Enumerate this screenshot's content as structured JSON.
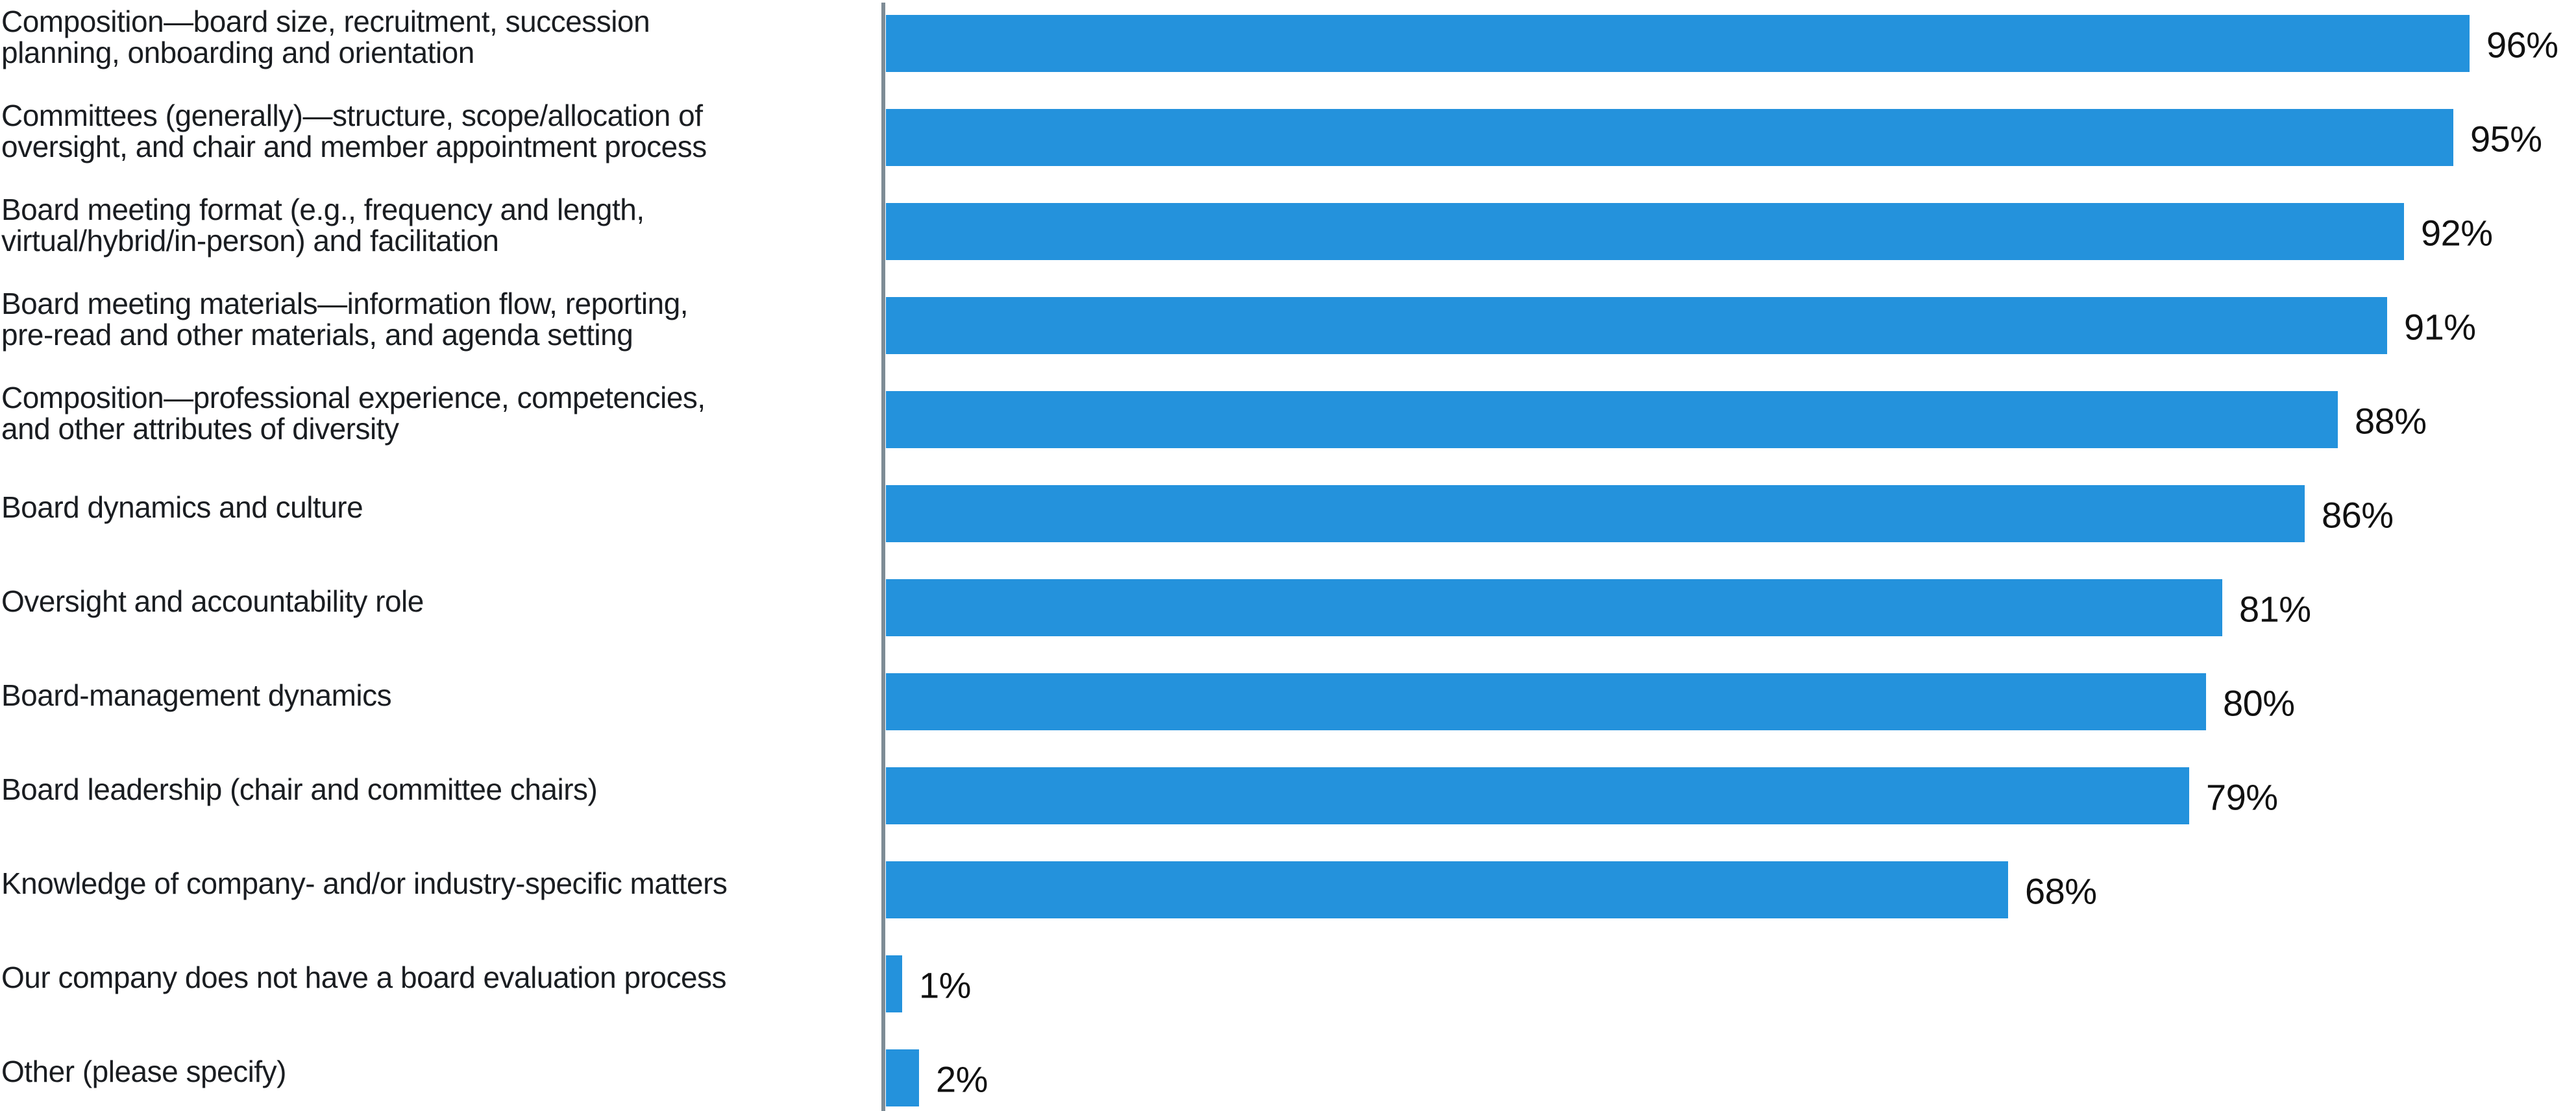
{
  "chart_data": {
    "type": "bar",
    "orientation": "horizontal",
    "title": "",
    "xlabel": "",
    "ylabel": "",
    "xlim": [
      0,
      100
    ],
    "grid": false,
    "legend": false,
    "value_label_position": "outside-end",
    "bar_color": "#2492DC",
    "axis_line_color": "#7E8C96",
    "label_color": "#1A1D21",
    "value_color": "#111111",
    "categories": [
      "Composition—board size, recruitment, succession planning, onboarding and orientation",
      "Committees (generally)—structure, scope/allocation of oversight, and chair and member appointment process",
      "Board meeting format (e.g., frequency and length, virtual/hybrid/in-person) and facilitation",
      "Board meeting materials—information flow, reporting, pre-read and other materials, and agenda setting",
      "Composition—professional experience, competencies, and other attributes of diversity",
      "Board dynamics and culture",
      "Oversight and accountability role",
      "Board-management dynamics",
      "Board leadership (chair and committee chairs)",
      "Knowledge of company- and/or industry-specific matters",
      "Our company does not have a board evaluation process",
      "Other (please specify)"
    ],
    "category_lines": [
      [
        "Composition—board size, recruitment, succession",
        "planning, onboarding and orientation"
      ],
      [
        "Committees (generally)—structure, scope/allocation of",
        "oversight, and chair and member appointment process"
      ],
      [
        "Board meeting format (e.g., frequency and length,",
        "virtual/hybrid/in-person) and facilitation"
      ],
      [
        "Board meeting materials—information flow, reporting,",
        "pre-read and other materials, and agenda setting"
      ],
      [
        "Composition—professional experience, competencies,",
        "and other attributes of diversity"
      ],
      [
        "Board dynamics and culture"
      ],
      [
        "Oversight and accountability role"
      ],
      [
        "Board-management dynamics"
      ],
      [
        "Board leadership (chair and committee chairs)"
      ],
      [
        "Knowledge of company- and/or industry-specific matters"
      ],
      [
        "Our company does not have a board evaluation process"
      ],
      [
        "Other (please specify)"
      ]
    ],
    "values": [
      96,
      95,
      92,
      91,
      88,
      86,
      81,
      80,
      79,
      68,
      1,
      2
    ],
    "value_labels": [
      "96%",
      "95%",
      "92%",
      "91%",
      "88%",
      "86%",
      "81%",
      "80%",
      "79%",
      "68%",
      "1%",
      "2%"
    ]
  }
}
